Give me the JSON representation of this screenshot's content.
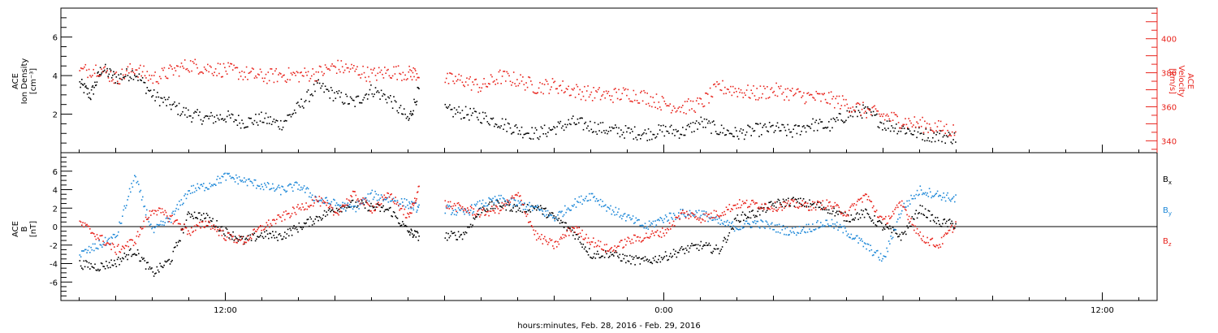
{
  "colors": {
    "black": "#000000",
    "red": "#e8231c",
    "blue": "#1e88d8"
  },
  "x_axis": {
    "title": "hours:minutes, Feb. 28, 2016 - Feb. 29, 2016",
    "tick_labels": [
      "12:00",
      "0:00",
      "12:00"
    ],
    "tick_hours": [
      12,
      24,
      36
    ],
    "range_hours": [
      7.5,
      37.5
    ]
  },
  "chart_data": [
    {
      "panel": "top",
      "type": "scatter",
      "y_left": {
        "label_line1": "ACE",
        "label_line2": "Ion Density",
        "label_unit": "[cm⁻³]",
        "tick_labels": [
          "2",
          "4",
          "6"
        ],
        "range": [
          0,
          7.5
        ]
      },
      "y_right": {
        "label_line1": "ACE",
        "label_line2": "Velocity",
        "label_unit": "[km/s]",
        "tick_labels": [
          "340",
          "360",
          "380",
          "400"
        ],
        "range": [
          333,
          418
        ]
      },
      "series": [
        {
          "color": "black",
          "axis": "left",
          "points": [
            [
              8,
              3.6
            ],
            [
              8.3,
              3.0
            ],
            [
              8.6,
              4.4
            ],
            [
              9.0,
              3.9
            ],
            [
              9.5,
              4.2
            ],
            [
              10.0,
              3.0
            ],
            [
              10.5,
              2.5
            ],
            [
              11.0,
              2.0
            ],
            [
              11.5,
              1.8
            ],
            [
              12.0,
              1.9
            ],
            [
              12.5,
              1.6
            ],
            [
              13.0,
              1.8
            ],
            [
              13.5,
              1.5
            ],
            [
              14.0,
              2.4
            ],
            [
              14.5,
              3.5
            ],
            [
              15.0,
              3.0
            ],
            [
              15.5,
              2.6
            ],
            [
              16.0,
              3.3
            ],
            [
              16.5,
              2.8
            ],
            [
              17.0,
              1.7
            ],
            [
              17.3,
              3.4
            ],
            [
              18.0,
              2.2
            ],
            [
              18.5,
              2.1
            ],
            [
              19.0,
              1.9
            ],
            [
              19.5,
              1.6
            ],
            [
              20.0,
              1.2
            ],
            [
              20.5,
              1.0
            ],
            [
              21.0,
              1.3
            ],
            [
              21.5,
              1.6
            ],
            [
              22.0,
              1.4
            ],
            [
              22.5,
              1.2
            ],
            [
              23.0,
              1.1
            ],
            [
              23.5,
              1.0
            ],
            [
              24.0,
              1.2
            ],
            [
              24.5,
              1.1
            ],
            [
              25.0,
              1.6
            ],
            [
              25.5,
              1.2
            ],
            [
              26.0,
              1.0
            ],
            [
              26.5,
              1.2
            ],
            [
              27.0,
              1.3
            ],
            [
              27.5,
              1.1
            ],
            [
              28.0,
              1.5
            ],
            [
              28.5,
              1.4
            ],
            [
              29.0,
              2.0
            ],
            [
              29.5,
              2.2
            ],
            [
              30.0,
              1.5
            ],
            [
              30.5,
              1.3
            ],
            [
              31.0,
              1.0
            ],
            [
              31.5,
              0.9
            ],
            [
              32.0,
              0.8
            ]
          ]
        },
        {
          "color": "red",
          "axis": "right",
          "points": [
            [
              8,
              381
            ],
            [
              8.5,
              383
            ],
            [
              9.0,
              377
            ],
            [
              9.5,
              383
            ],
            [
              10.0,
              377
            ],
            [
              10.5,
              381
            ],
            [
              11.0,
              385
            ],
            [
              11.5,
              383
            ],
            [
              12.0,
              382
            ],
            [
              12.5,
              380
            ],
            [
              13.0,
              378
            ],
            [
              13.5,
              379
            ],
            [
              14.0,
              379
            ],
            [
              14.5,
              380
            ],
            [
              15.0,
              384
            ],
            [
              15.5,
              382
            ],
            [
              16.0,
              379
            ],
            [
              16.5,
              381
            ],
            [
              17.0,
              380
            ],
            [
              17.3,
              380
            ],
            [
              18.0,
              376
            ],
            [
              18.5,
              376
            ],
            [
              19.0,
              372
            ],
            [
              19.5,
              378
            ],
            [
              20.0,
              376
            ],
            [
              20.5,
              372
            ],
            [
              21.0,
              373
            ],
            [
              21.5,
              370
            ],
            [
              22.0,
              368
            ],
            [
              22.5,
              367
            ],
            [
              23.0,
              368
            ],
            [
              23.5,
              366
            ],
            [
              24.0,
              362
            ],
            [
              24.5,
              360
            ],
            [
              25.0,
              362
            ],
            [
              25.5,
              372
            ],
            [
              26.0,
              370
            ],
            [
              26.5,
              368
            ],
            [
              27.0,
              370
            ],
            [
              27.5,
              368
            ],
            [
              28.0,
              366
            ],
            [
              28.5,
              365
            ],
            [
              29.0,
              362
            ],
            [
              29.5,
              358
            ],
            [
              30.0,
              355
            ],
            [
              30.5,
              352
            ],
            [
              31.0,
              350
            ],
            [
              31.5,
              348
            ],
            [
              32.0,
              346
            ]
          ]
        }
      ]
    },
    {
      "panel": "bottom",
      "type": "scatter",
      "y_left": {
        "label_line1": "ACE",
        "label_line2": "B",
        "label_unit": "[nT]",
        "tick_labels": [
          "-6",
          "-4",
          "-2",
          "0",
          "2",
          "4",
          "6"
        ],
        "range": [
          -8,
          8
        ]
      },
      "legend": [
        {
          "label": "B",
          "sub": "x",
          "color": "black"
        },
        {
          "label": "B",
          "sub": "y",
          "color": "blue"
        },
        {
          "label": "B",
          "sub": "z",
          "color": "red"
        }
      ],
      "series": [
        {
          "name": "Bx",
          "color": "black",
          "points": [
            [
              8,
              -4.0
            ],
            [
              8.5,
              -4.3
            ],
            [
              9.0,
              -3.8
            ],
            [
              9.5,
              -2.5
            ],
            [
              10.0,
              -5.0
            ],
            [
              10.5,
              -3.5
            ],
            [
              11.0,
              1.5
            ],
            [
              11.5,
              1.0
            ],
            [
              12.0,
              -0.5
            ],
            [
              12.5,
              -1.5
            ],
            [
              13.0,
              -0.8
            ],
            [
              13.5,
              -1.0
            ],
            [
              14.0,
              0.0
            ],
            [
              14.5,
              1.0
            ],
            [
              15.0,
              2.0
            ],
            [
              15.5,
              2.5
            ],
            [
              16.0,
              2.2
            ],
            [
              16.5,
              1.8
            ],
            [
              17.0,
              -0.5
            ],
            [
              17.3,
              -1.0
            ],
            [
              18.0,
              -1.0
            ],
            [
              18.5,
              -0.8
            ],
            [
              19.0,
              2.0
            ],
            [
              19.5,
              2.5
            ],
            [
              20.0,
              2.0
            ],
            [
              20.5,
              2.2
            ],
            [
              21.0,
              1.0
            ],
            [
              21.5,
              -0.5
            ],
            [
              22.0,
              -3.0
            ],
            [
              22.5,
              -2.8
            ],
            [
              23.0,
              -3.5
            ],
            [
              23.5,
              -3.7
            ],
            [
              24.0,
              -3.2
            ],
            [
              24.5,
              -2.5
            ],
            [
              25.0,
              -2.0
            ],
            [
              25.5,
              -2.5
            ],
            [
              26.0,
              1.0
            ],
            [
              26.5,
              1.5
            ],
            [
              27.0,
              2.5
            ],
            [
              27.5,
              2.8
            ],
            [
              28.0,
              2.5
            ],
            [
              28.5,
              2.0
            ],
            [
              29.0,
              1.0
            ],
            [
              29.5,
              1.5
            ],
            [
              30.0,
              0.0
            ],
            [
              30.5,
              -1.0
            ],
            [
              31.0,
              2.0
            ],
            [
              31.5,
              0.5
            ],
            [
              32.0,
              0.3
            ]
          ]
        },
        {
          "name": "By",
          "color": "blue",
          "points": [
            [
              8,
              -3.0
            ],
            [
              8.5,
              -2.0
            ],
            [
              9.0,
              -1.0
            ],
            [
              9.5,
              5.5
            ],
            [
              10.0,
              -0.5
            ],
            [
              10.5,
              1.0
            ],
            [
              11.0,
              4.0
            ],
            [
              11.5,
              4.5
            ],
            [
              12.0,
              5.5
            ],
            [
              12.5,
              5.0
            ],
            [
              13.0,
              4.5
            ],
            [
              13.5,
              4.0
            ],
            [
              14.0,
              4.5
            ],
            [
              14.5,
              3.0
            ],
            [
              15.0,
              2.5
            ],
            [
              15.5,
              2.0
            ],
            [
              16.0,
              3.5
            ],
            [
              16.5,
              3.0
            ],
            [
              17.0,
              2.5
            ],
            [
              17.3,
              2.0
            ],
            [
              18.0,
              2.0
            ],
            [
              18.5,
              1.5
            ],
            [
              19.0,
              2.5
            ],
            [
              19.5,
              3.0
            ],
            [
              20.0,
              2.5
            ],
            [
              20.5,
              2.0
            ],
            [
              21.0,
              1.0
            ],
            [
              21.5,
              2.5
            ],
            [
              22.0,
              3.5
            ],
            [
              22.5,
              2.0
            ],
            [
              23.0,
              1.0
            ],
            [
              23.5,
              0.0
            ],
            [
              24.0,
              1.0
            ],
            [
              24.5,
              1.5
            ],
            [
              25.0,
              1.5
            ],
            [
              25.5,
              0.5
            ],
            [
              26.0,
              0.0
            ],
            [
              26.5,
              0.5
            ],
            [
              27.0,
              0.0
            ],
            [
              27.5,
              -0.5
            ],
            [
              28.0,
              0.0
            ],
            [
              28.5,
              0.5
            ],
            [
              29.0,
              -0.5
            ],
            [
              29.5,
              -2.0
            ],
            [
              30.0,
              -3.5
            ],
            [
              30.5,
              2.0
            ],
            [
              31.0,
              4.0
            ],
            [
              31.5,
              3.5
            ],
            [
              32.0,
              3.0
            ]
          ]
        },
        {
          "name": "Bz",
          "color": "red",
          "points": [
            [
              8,
              0.5
            ],
            [
              8.5,
              -1.0
            ],
            [
              9.0,
              -2.5
            ],
            [
              9.5,
              -1.5
            ],
            [
              10.0,
              2.0
            ],
            [
              10.5,
              1.0
            ],
            [
              11.0,
              -0.5
            ],
            [
              11.5,
              0.5
            ],
            [
              12.0,
              -1.0
            ],
            [
              12.5,
              -1.5
            ],
            [
              13.0,
              0.0
            ],
            [
              13.5,
              1.0
            ],
            [
              14.0,
              2.0
            ],
            [
              14.5,
              3.0
            ],
            [
              15.0,
              1.5
            ],
            [
              15.5,
              3.5
            ],
            [
              16.0,
              2.0
            ],
            [
              16.5,
              3.5
            ],
            [
              17.0,
              1.0
            ],
            [
              17.3,
              4.5
            ],
            [
              18.0,
              2.5
            ],
            [
              18.5,
              2.0
            ],
            [
              19.0,
              1.5
            ],
            [
              19.5,
              2.0
            ],
            [
              20.0,
              3.5
            ],
            [
              20.5,
              -1.0
            ],
            [
              21.0,
              -2.0
            ],
            [
              21.5,
              0.0
            ],
            [
              22.0,
              -1.5
            ],
            [
              22.5,
              -2.5
            ],
            [
              23.0,
              -1.5
            ],
            [
              23.5,
              -1.0
            ],
            [
              24.0,
              -0.5
            ],
            [
              24.5,
              1.5
            ],
            [
              25.0,
              1.0
            ],
            [
              25.5,
              1.5
            ],
            [
              26.0,
              2.5
            ],
            [
              26.5,
              2.5
            ],
            [
              27.0,
              2.2
            ],
            [
              27.5,
              2.5
            ],
            [
              28.0,
              2.3
            ],
            [
              28.5,
              2.5
            ],
            [
              29.0,
              1.5
            ],
            [
              29.5,
              3.5
            ],
            [
              30.0,
              0.5
            ],
            [
              30.5,
              2.5
            ],
            [
              31.0,
              -1.0
            ],
            [
              31.5,
              -2.0
            ],
            [
              32.0,
              0.5
            ]
          ]
        }
      ]
    }
  ]
}
